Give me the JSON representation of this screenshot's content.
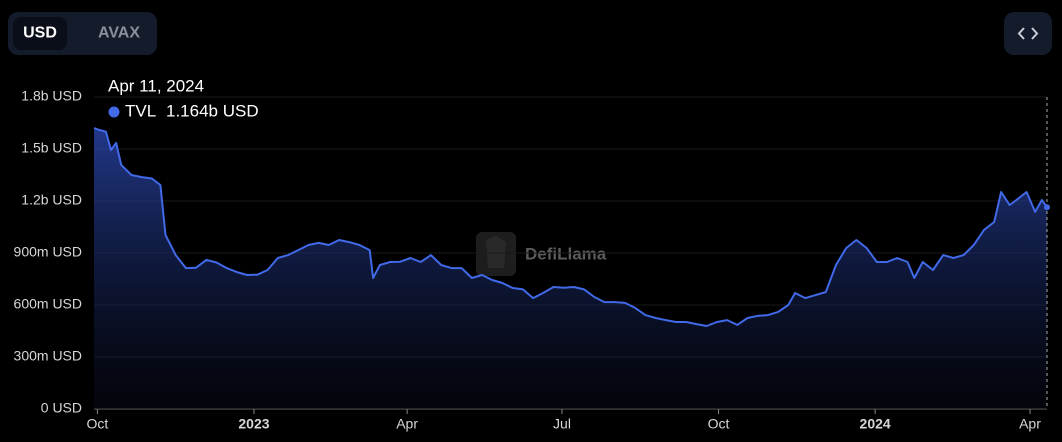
{
  "controls": {
    "currency_options": [
      "USD",
      "AVAX"
    ],
    "selected": 0
  },
  "watermark": "DefiLlama",
  "chart_data": {
    "type": "area",
    "x": [
      "2022-09-29",
      "2022-10-02",
      "2022-10-06",
      "2022-10-09",
      "2022-10-12",
      "2022-10-15",
      "2022-10-21",
      "2022-10-27",
      "2022-11-02",
      "2022-11-07",
      "2022-11-10",
      "2022-11-16",
      "2022-11-22",
      "2022-11-28",
      "2022-12-04",
      "2022-12-10",
      "2022-12-16",
      "2022-12-22",
      "2022-12-28",
      "2023-01-03",
      "2023-01-09",
      "2023-01-15",
      "2023-01-21",
      "2023-01-27",
      "2023-02-02",
      "2023-02-08",
      "2023-02-14",
      "2023-02-20",
      "2023-02-26",
      "2023-03-04",
      "2023-03-10",
      "2023-03-12",
      "2023-03-16",
      "2023-03-22",
      "2023-03-28",
      "2023-04-03",
      "2023-04-09",
      "2023-04-15",
      "2023-04-21",
      "2023-04-27",
      "2023-05-03",
      "2023-05-09",
      "2023-05-15",
      "2023-05-21",
      "2023-05-27",
      "2023-06-02",
      "2023-06-08",
      "2023-06-14",
      "2023-06-20",
      "2023-06-26",
      "2023-07-02",
      "2023-07-08",
      "2023-07-14",
      "2023-07-20",
      "2023-07-26",
      "2023-08-01",
      "2023-08-07",
      "2023-08-13",
      "2023-08-19",
      "2023-08-25",
      "2023-08-31",
      "2023-09-06",
      "2023-09-12",
      "2023-09-18",
      "2023-09-24",
      "2023-09-30",
      "2023-10-06",
      "2023-10-12",
      "2023-10-18",
      "2023-10-24",
      "2023-10-30",
      "2023-11-05",
      "2023-11-11",
      "2023-11-15",
      "2023-11-21",
      "2023-11-27",
      "2023-12-03",
      "2023-12-09",
      "2023-12-15",
      "2023-12-21",
      "2023-12-27",
      "2024-01-02",
      "2024-01-08",
      "2024-01-14",
      "2024-01-20",
      "2024-01-24",
      "2024-01-29",
      "2024-02-04",
      "2024-02-10",
      "2024-02-16",
      "2024-02-22",
      "2024-02-28",
      "2024-03-05",
      "2024-03-11",
      "2024-03-15",
      "2024-03-20",
      "2024-03-24",
      "2024-03-30",
      "2024-04-04",
      "2024-04-08",
      "2024-04-11"
    ],
    "series": [
      {
        "name": "TVL",
        "color": "#4169e8",
        "values": [
          1621000000,
          1610000000,
          1600000000,
          1494000000,
          1535000000,
          1408000000,
          1350000000,
          1338000000,
          1330000000,
          1292000000,
          1004000000,
          888000000,
          813000000,
          815000000,
          860000000,
          845000000,
          813000000,
          790000000,
          773000000,
          775000000,
          802000000,
          871000000,
          888000000,
          917000000,
          946000000,
          958000000,
          946000000,
          975000000,
          963000000,
          946000000,
          917000000,
          756000000,
          831000000,
          848000000,
          850000000,
          871000000,
          848000000,
          888000000,
          831000000,
          813000000,
          813000000,
          756000000,
          773000000,
          744000000,
          727000000,
          698000000,
          690000000,
          640000000,
          670000000,
          704000000,
          700000000,
          704000000,
          690000000,
          646000000,
          617000000,
          617000000,
          612000000,
          583000000,
          542000000,
          525000000,
          513000000,
          502000000,
          502000000,
          490000000,
          479000000,
          502000000,
          513000000,
          485000000,
          525000000,
          537000000,
          542000000,
          560000000,
          600000000,
          669000000,
          640000000,
          657000000,
          675000000,
          831000000,
          929000000,
          975000000,
          929000000,
          848000000,
          848000000,
          871000000,
          848000000,
          756000000,
          848000000,
          802000000,
          888000000,
          871000000,
          888000000,
          946000000,
          1033000000,
          1079000000,
          1252000000,
          1177000000,
          1206000000,
          1252000000,
          1137000000,
          1206000000,
          1164000000
        ]
      }
    ],
    "xlim": [
      "2022-09-29",
      "2024-04-11"
    ],
    "xticks": [
      {
        "value": "2022-10-01",
        "label": "Oct"
      },
      {
        "value": "2023-01-01",
        "label": "2023"
      },
      {
        "value": "2023-04-01",
        "label": "Apr"
      },
      {
        "value": "2023-07-01",
        "label": "Jul"
      },
      {
        "value": "2023-10-01",
        "label": "Oct"
      },
      {
        "value": "2024-01-01",
        "label": "2024"
      },
      {
        "value": "2024-04-01",
        "label": "Apr"
      }
    ],
    "ylim": [
      0,
      1800000000
    ],
    "yticks": [
      {
        "value": 0,
        "label": "0 USD"
      },
      {
        "value": 300000000,
        "label": "300m USD"
      },
      {
        "value": 600000000,
        "label": "600m USD"
      },
      {
        "value": 900000000,
        "label": "900m USD"
      },
      {
        "value": 1200000000,
        "label": "1.2b USD"
      },
      {
        "value": 1500000000,
        "label": "1.5b USD"
      },
      {
        "value": 1800000000,
        "label": "1.8b USD"
      }
    ],
    "grid": true,
    "tooltip": {
      "date": "Apr 11, 2024",
      "x": "2024-04-11",
      "value": 1164000000,
      "value_label": "1.164b USD"
    }
  }
}
